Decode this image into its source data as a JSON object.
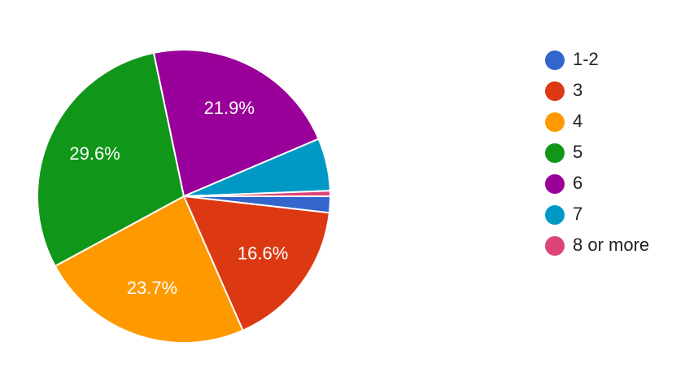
{
  "chart_data": {
    "type": "pie",
    "categories": [
      "1-2",
      "3",
      "4",
      "5",
      "6",
      "7",
      "8 or more"
    ],
    "values": [
      1.8,
      16.6,
      23.7,
      29.6,
      21.9,
      5.8,
      0.6
    ],
    "value_labels": [
      null,
      "16.6%",
      "23.7%",
      "29.6%",
      "21.9%",
      null,
      null
    ],
    "colors": [
      "#3366cc",
      "#dc3912",
      "#ff9900",
      "#109618",
      "#990099",
      "#0099c6",
      "#dd4477"
    ],
    "legend": "right"
  }
}
